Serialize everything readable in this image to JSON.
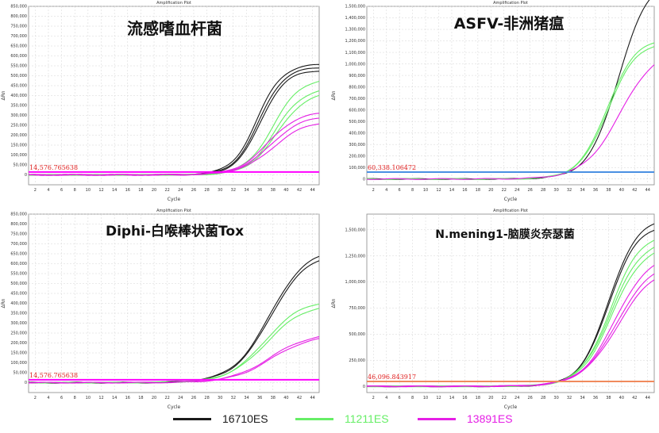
{
  "chart_data": [
    {
      "type": "line",
      "plot_title": "Amplification Plot",
      "title": "流感嗜血杆菌",
      "xlabel": "Cycle",
      "ylabel": "ΔRn",
      "xlim": [
        1,
        45
      ],
      "ylim": [
        -50000,
        850000
      ],
      "xticks": [
        2,
        4,
        6,
        8,
        10,
        12,
        14,
        16,
        18,
        20,
        22,
        24,
        26,
        28,
        30,
        32,
        34,
        36,
        38,
        40,
        42,
        44
      ],
      "yticks": [
        0,
        50000,
        100000,
        150000,
        200000,
        250000,
        300000,
        350000,
        400000,
        450000,
        500000,
        550000,
        600000,
        650000,
        700000,
        750000,
        800000,
        850000
      ],
      "ytick_labels": [
        "0",
        "50,000",
        "100,000",
        "150,000",
        "200,000",
        "250,000",
        "300,000",
        "350,000",
        "400,000",
        "450,000",
        "500,000",
        "550,000",
        "600,000",
        "650,000",
        "700,000",
        "750,000",
        "800,000",
        "850,000"
      ],
      "threshold": {
        "value": 14576.765638,
        "label": "14,576.765638",
        "color": "#ff00ff"
      },
      "curves": [
        {
          "series": "16710ES",
          "color": "#1a1a1a",
          "plateau": 560000,
          "ct": 35.6,
          "slope": 1.9
        },
        {
          "series": "16710ES",
          "color": "#1a1a1a",
          "plateau": 545000,
          "ct": 35.9,
          "slope": 1.9
        },
        {
          "series": "16710ES",
          "color": "#1a1a1a",
          "plateau": 530000,
          "ct": 36.1,
          "slope": 1.9
        },
        {
          "series": "11211ES",
          "color": "#66ee66",
          "plateau": 490000,
          "ct": 38.0,
          "slope": 2.1
        },
        {
          "series": "11211ES",
          "color": "#66ee66",
          "plateau": 440000,
          "ct": 38.3,
          "slope": 2.1
        },
        {
          "series": "11211ES",
          "color": "#66ee66",
          "plateau": 420000,
          "ct": 38.6,
          "slope": 2.2
        },
        {
          "series": "13891ES",
          "color": "#e51fe5",
          "plateau": 320000,
          "ct": 37.2,
          "slope": 2.3
        },
        {
          "series": "13891ES",
          "color": "#e51fe5",
          "plateau": 300000,
          "ct": 37.6,
          "slope": 2.4
        },
        {
          "series": "13891ES",
          "color": "#e51fe5",
          "plateau": 275000,
          "ct": 38.0,
          "slope": 2.5
        }
      ]
    },
    {
      "type": "line",
      "plot_title": "Amplification Plot",
      "title": "ASFV-非洲猪瘟",
      "xlabel": "Cycle",
      "ylabel": "ΔRn",
      "xlim": [
        1,
        45
      ],
      "ylim": [
        -50000,
        1500000
      ],
      "xticks": [
        2,
        4,
        6,
        8,
        10,
        12,
        14,
        16,
        18,
        20,
        22,
        24,
        26,
        28,
        30,
        32,
        34,
        36,
        38,
        40,
        42,
        44
      ],
      "yticks": [
        0,
        100000,
        200000,
        300000,
        400000,
        500000,
        600000,
        700000,
        800000,
        900000,
        1000000,
        1100000,
        1200000,
        1300000,
        1400000,
        1500000
      ],
      "ytick_labels": [
        "0",
        "100,000",
        "200,000",
        "300,000",
        "400,000",
        "500,000",
        "600,000",
        "700,000",
        "800,000",
        "900,000",
        "1,000,000",
        "1,100,000",
        "1,200,000",
        "1,300,000",
        "1,400,000",
        "1,500,000"
      ],
      "threshold": {
        "value": 60338.106472,
        "label": "60,338.106472",
        "color": "#4a90e2"
      },
      "curves": [
        {
          "series": "16710ES",
          "color": "#1a1a1a",
          "plateau": 1750000,
          "ct": 39.5,
          "slope": 2.3
        },
        {
          "series": "11211ES",
          "color": "#66ee66",
          "plateau": 1230000,
          "ct": 37.8,
          "slope": 2.2
        },
        {
          "series": "11211ES",
          "color": "#66ee66",
          "plateau": 1200000,
          "ct": 37.9,
          "slope": 2.2
        },
        {
          "series": "13891ES",
          "color": "#e51fe5",
          "plateau": 1150000,
          "ct": 39.8,
          "slope": 2.8
        }
      ]
    },
    {
      "type": "line",
      "plot_title": "Amplification Plot",
      "title": "Diphi-白喉棒状菌Tox",
      "xlabel": "Cycle",
      "ylabel": "ΔRn",
      "xlim": [
        1,
        45
      ],
      "ylim": [
        -50000,
        850000
      ],
      "xticks": [
        2,
        4,
        6,
        8,
        10,
        12,
        14,
        16,
        18,
        20,
        22,
        24,
        26,
        28,
        30,
        32,
        34,
        36,
        38,
        40,
        42,
        44
      ],
      "yticks": [
        0,
        50000,
        100000,
        150000,
        200000,
        250000,
        300000,
        350000,
        400000,
        450000,
        500000,
        550000,
        600000,
        650000,
        700000,
        750000,
        800000,
        850000
      ],
      "ytick_labels": [
        "0",
        "50,000",
        "100,000",
        "150,000",
        "200,000",
        "250,000",
        "300,000",
        "350,000",
        "400,000",
        "450,000",
        "500,000",
        "550,000",
        "600,000",
        "650,000",
        "700,000",
        "750,000",
        "800,000",
        "850,000"
      ],
      "threshold": {
        "value": 14576.765638,
        "label": "14,576.765638",
        "color": "#ff00ff"
      },
      "curves": [
        {
          "series": "16710ES",
          "color": "#1a1a1a",
          "plateau": 680000,
          "ct": 37.5,
          "slope": 2.8
        },
        {
          "series": "16710ES",
          "color": "#1a1a1a",
          "plateau": 660000,
          "ct": 37.6,
          "slope": 2.8
        },
        {
          "series": "11211ES",
          "color": "#66ee66",
          "plateau": 420000,
          "ct": 36.8,
          "slope": 2.8
        },
        {
          "series": "11211ES",
          "color": "#66ee66",
          "plateau": 400000,
          "ct": 37.0,
          "slope": 2.9
        },
        {
          "series": "13891ES",
          "color": "#e51fe5",
          "plateau": 250000,
          "ct": 37.5,
          "slope": 3.0
        },
        {
          "series": "13891ES",
          "color": "#e51fe5",
          "plateau": 240000,
          "ct": 37.7,
          "slope": 3.0
        }
      ]
    },
    {
      "type": "line",
      "plot_title": "Amplification Plot",
      "title": "N.mening1-脑膜炎奈瑟菌",
      "xlabel": "Cycle",
      "ylabel": "ΔRn",
      "xlim": [
        1,
        45
      ],
      "ylim": [
        -60000,
        1650000
      ],
      "xticks": [
        2,
        4,
        6,
        8,
        10,
        12,
        14,
        16,
        18,
        20,
        22,
        24,
        26,
        28,
        30,
        32,
        34,
        36,
        38,
        40,
        42,
        44
      ],
      "yticks": [
        0,
        250000,
        500000,
        750000,
        1000000,
        1250000,
        1500000
      ],
      "ytick_labels": [
        "0",
        "250,000",
        "500,000",
        "750,000",
        "1,000,000",
        "1,250,000",
        "1,500,000"
      ],
      "threshold": {
        "value": 46096.843917,
        "label": "46,096.843917",
        "color": "#f08a5d"
      },
      "curves": [
        {
          "series": "16710ES",
          "color": "#1a1a1a",
          "plateau": 1620000,
          "ct": 38.0,
          "slope": 2.2
        },
        {
          "series": "16710ES",
          "color": "#1a1a1a",
          "plateau": 1560000,
          "ct": 38.0,
          "slope": 2.2
        },
        {
          "series": "11211ES",
          "color": "#66ee66",
          "plateau": 1480000,
          "ct": 38.3,
          "slope": 2.3
        },
        {
          "series": "11211ES",
          "color": "#66ee66",
          "plateau": 1420000,
          "ct": 38.4,
          "slope": 2.4
        },
        {
          "series": "11211ES",
          "color": "#66ee66",
          "plateau": 1360000,
          "ct": 38.5,
          "slope": 2.4
        },
        {
          "series": "13891ES",
          "color": "#e51fe5",
          "plateau": 1270000,
          "ct": 39.0,
          "slope": 2.6
        },
        {
          "series": "13891ES",
          "color": "#e51fe5",
          "plateau": 1200000,
          "ct": 39.2,
          "slope": 2.7
        },
        {
          "series": "13891ES",
          "color": "#e51fe5",
          "plateau": 1160000,
          "ct": 39.4,
          "slope": 2.8
        }
      ]
    }
  ],
  "legend": [
    {
      "label": "16710ES",
      "color": "#1a1a1a"
    },
    {
      "label": "11211ES",
      "color": "#66ee66"
    },
    {
      "label": "13891ES",
      "color": "#e51fe5"
    }
  ]
}
